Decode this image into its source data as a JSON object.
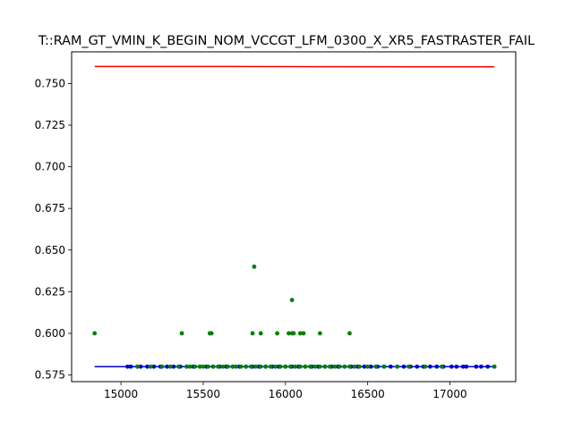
{
  "chart_data": {
    "type": "scatter",
    "title": "T::RAM_GT_VMIN_K_BEGIN_NOM_VCCGT_LFM_0300_X_XR5_FASTRASTER_FAIL",
    "xlabel": "",
    "ylabel": "",
    "xlim": [
      14700,
      17400
    ],
    "ylim": [
      0.571,
      0.769
    ],
    "x_ticks": [
      15000,
      15500,
      16000,
      16500,
      17000
    ],
    "y_ticks": [
      0.575,
      0.6,
      0.625,
      0.65,
      0.675,
      0.7,
      0.725,
      0.75
    ],
    "x_tick_labels": [
      "15000",
      "15500",
      "16000",
      "16500",
      "17000"
    ],
    "y_tick_labels": [
      "0.575",
      "0.600",
      "0.625",
      "0.650",
      "0.675",
      "0.700",
      "0.725",
      "0.750"
    ],
    "grid": false,
    "series": [
      {
        "color": "#ff0000",
        "kind": "line",
        "points": [
          [
            14840,
            0.7602
          ],
          [
            15530,
            0.7602
          ],
          [
            16220,
            0.7601
          ],
          [
            17270,
            0.76
          ]
        ]
      },
      {
        "color": "#0000cc",
        "kind": "line",
        "points": [
          [
            14840,
            0.58
          ],
          [
            17270,
            0.58
          ]
        ]
      },
      {
        "color": "#0000cc",
        "kind": "scatter",
        "points": [
          [
            15040,
            0.58
          ],
          [
            15060,
            0.58
          ],
          [
            15100,
            0.58
          ],
          [
            15120,
            0.58
          ],
          [
            15160,
            0.58
          ],
          [
            15200,
            0.58
          ],
          [
            15240,
            0.58
          ],
          [
            15280,
            0.58
          ],
          [
            15320,
            0.58
          ],
          [
            15360,
            0.58
          ],
          [
            15400,
            0.58
          ],
          [
            15440,
            0.58
          ],
          [
            15480,
            0.58
          ],
          [
            15520,
            0.58
          ],
          [
            15560,
            0.58
          ],
          [
            15600,
            0.58
          ],
          [
            15640,
            0.58
          ],
          [
            15680,
            0.58
          ],
          [
            15720,
            0.58
          ],
          [
            15760,
            0.58
          ],
          [
            15800,
            0.58
          ],
          [
            15840,
            0.58
          ],
          [
            15880,
            0.58
          ],
          [
            15920,
            0.58
          ],
          [
            15960,
            0.58
          ],
          [
            16000,
            0.58
          ],
          [
            16040,
            0.58
          ],
          [
            16080,
            0.58
          ],
          [
            16120,
            0.58
          ],
          [
            16160,
            0.58
          ],
          [
            16200,
            0.58
          ],
          [
            16240,
            0.58
          ],
          [
            16280,
            0.58
          ],
          [
            16320,
            0.58
          ],
          [
            16360,
            0.58
          ],
          [
            16400,
            0.58
          ],
          [
            16440,
            0.58
          ],
          [
            16480,
            0.58
          ],
          [
            16520,
            0.58
          ],
          [
            16560,
            0.58
          ],
          [
            16600,
            0.58
          ],
          [
            16640,
            0.58
          ],
          [
            16680,
            0.58
          ],
          [
            16720,
            0.58
          ],
          [
            16760,
            0.58
          ],
          [
            16800,
            0.58
          ],
          [
            16840,
            0.58
          ],
          [
            16880,
            0.58
          ],
          [
            16920,
            0.58
          ],
          [
            16960,
            0.58
          ],
          [
            17010,
            0.58
          ],
          [
            17040,
            0.58
          ],
          [
            17080,
            0.58
          ],
          [
            17100,
            0.58
          ],
          [
            17160,
            0.58
          ],
          [
            17190,
            0.58
          ],
          [
            17230,
            0.58
          ],
          [
            17270,
            0.58
          ]
        ]
      },
      {
        "color": "#008000",
        "kind": "scatter",
        "points": [
          [
            14840,
            0.6
          ],
          [
            15370,
            0.6
          ],
          [
            15540,
            0.6
          ],
          [
            15550,
            0.6
          ],
          [
            15800,
            0.6
          ],
          [
            15850,
            0.6
          ],
          [
            15950,
            0.6
          ],
          [
            16020,
            0.6
          ],
          [
            16040,
            0.6
          ],
          [
            16050,
            0.6
          ],
          [
            16090,
            0.6
          ],
          [
            16110,
            0.6
          ],
          [
            16210,
            0.6
          ],
          [
            16390,
            0.6
          ],
          [
            15810,
            0.64
          ],
          [
            16040,
            0.62
          ],
          [
            15100,
            0.58
          ],
          [
            15180,
            0.58
          ],
          [
            15250,
            0.58
          ],
          [
            15300,
            0.58
          ],
          [
            15350,
            0.58
          ],
          [
            15400,
            0.58
          ],
          [
            15420,
            0.58
          ],
          [
            15450,
            0.58
          ],
          [
            15480,
            0.58
          ],
          [
            15500,
            0.58
          ],
          [
            15530,
            0.58
          ],
          [
            15560,
            0.58
          ],
          [
            15590,
            0.58
          ],
          [
            15620,
            0.58
          ],
          [
            15650,
            0.58
          ],
          [
            15680,
            0.58
          ],
          [
            15700,
            0.58
          ],
          [
            15730,
            0.58
          ],
          [
            15760,
            0.58
          ],
          [
            15790,
            0.58
          ],
          [
            15820,
            0.58
          ],
          [
            15850,
            0.58
          ],
          [
            15880,
            0.58
          ],
          [
            15910,
            0.58
          ],
          [
            15940,
            0.58
          ],
          [
            15970,
            0.58
          ],
          [
            16000,
            0.58
          ],
          [
            16030,
            0.58
          ],
          [
            16060,
            0.58
          ],
          [
            16090,
            0.58
          ],
          [
            16120,
            0.58
          ],
          [
            16150,
            0.58
          ],
          [
            16180,
            0.58
          ],
          [
            16210,
            0.58
          ],
          [
            16240,
            0.58
          ],
          [
            16270,
            0.58
          ],
          [
            16300,
            0.58
          ],
          [
            16330,
            0.58
          ],
          [
            16360,
            0.58
          ],
          [
            16390,
            0.58
          ],
          [
            16420,
            0.58
          ],
          [
            16450,
            0.58
          ],
          [
            16500,
            0.58
          ],
          [
            16550,
            0.58
          ],
          [
            16600,
            0.58
          ],
          [
            16680,
            0.58
          ],
          [
            16750,
            0.58
          ],
          [
            16850,
            0.58
          ],
          [
            16950,
            0.58
          ],
          [
            17270,
            0.58
          ]
        ]
      }
    ]
  }
}
